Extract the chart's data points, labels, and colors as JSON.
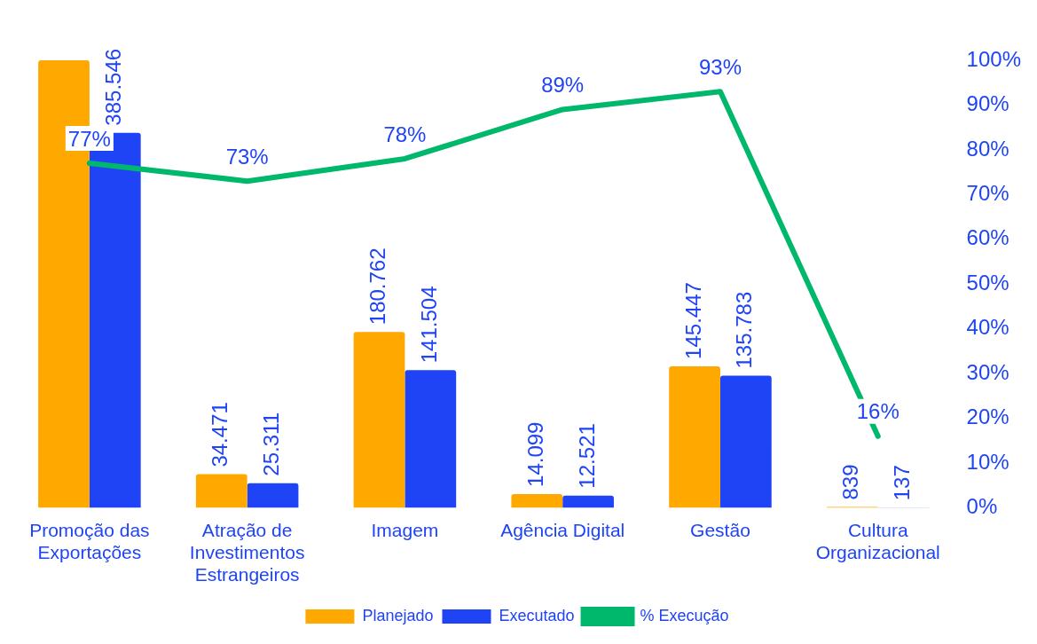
{
  "chart_data": {
    "type": "bar",
    "categories": [
      "Promoção das Exportações",
      "Atração de Investimentos Estrangeiros",
      "Imagem",
      "Agência Digital",
      "Gestão",
      "Cultura Organizacional"
    ],
    "series": [
      {
        "name": "Planejado",
        "color": "#ffa800",
        "values": [
          460000,
          34471,
          180762,
          14099,
          145447,
          839
        ],
        "value_labels": [
          null,
          "34.471",
          "180.762",
          "14.099",
          "145.447",
          "839"
        ]
      },
      {
        "name": "Executado",
        "color": "#1f44f5",
        "values": [
          385546,
          25311,
          141504,
          12521,
          135783,
          137
        ],
        "value_labels": [
          "385.546",
          "25.311",
          "141.504",
          "12.521",
          "135.783",
          "137"
        ]
      },
      {
        "name": "% Execução",
        "type": "line",
        "axis": "y2",
        "color": "#00b86b",
        "values": [
          77,
          73,
          78,
          89,
          93,
          16
        ],
        "value_labels": [
          "77%",
          "73%",
          "78%",
          "89%",
          "93%",
          "16%"
        ]
      }
    ],
    "y2lim": [
      0,
      100
    ],
    "y2ticks": [
      {
        "value": 0,
        "label": "0%"
      },
      {
        "value": 10,
        "label": "10%"
      },
      {
        "value": 20,
        "label": "20%"
      },
      {
        "value": 30,
        "label": "30%"
      },
      {
        "value": 40,
        "label": "40%"
      },
      {
        "value": 50,
        "label": "50%"
      },
      {
        "value": 60,
        "label": "60%"
      },
      {
        "value": 70,
        "label": "70%"
      },
      {
        "value": 80,
        "label": "80%"
      },
      {
        "value": 90,
        "label": "90%"
      },
      {
        "value": 100,
        "label": "100%"
      }
    ],
    "grid": false,
    "legend": "bottom",
    "marker": "none"
  }
}
